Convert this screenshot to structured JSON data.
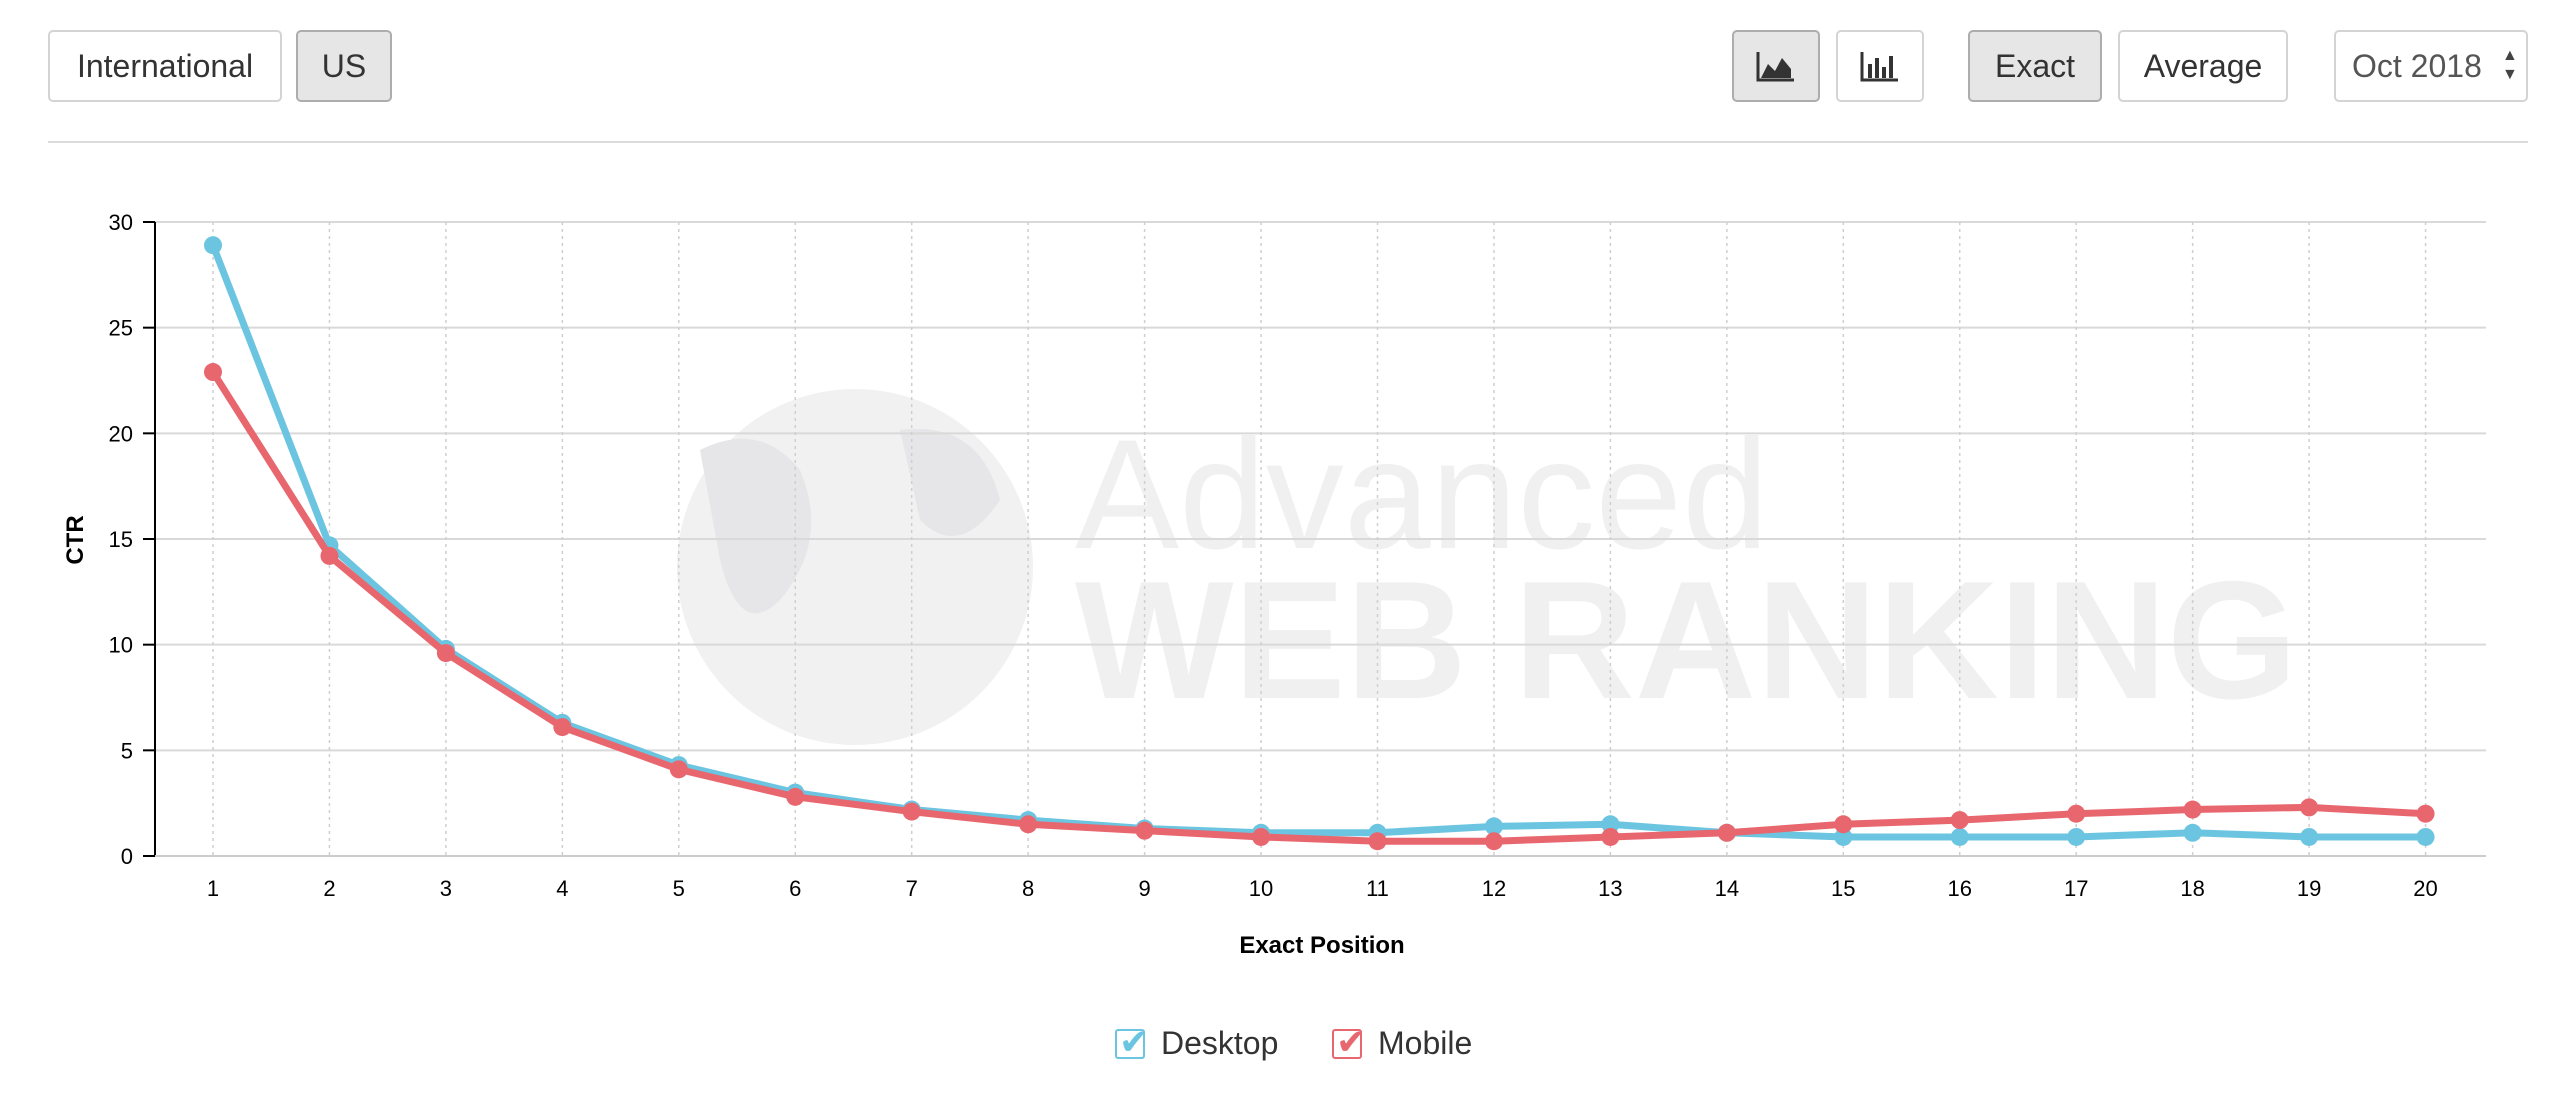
{
  "toolbar": {
    "region_international": "International",
    "region_us": "US",
    "view_area_icon": "area-chart-icon",
    "view_bar_icon": "bar-chart-icon",
    "mode_exact": "Exact",
    "mode_average": "Average",
    "date_value": "Oct 2018",
    "date_arrows": "▲▼"
  },
  "watermark": {
    "line1": "Advanced",
    "line2": "WEB RANKING"
  },
  "colors": {
    "desktop": "#6cc5e0",
    "mobile": "#e8676f",
    "grid": "#d9d9d9",
    "axis": "#000000"
  },
  "chart_data": {
    "type": "line",
    "xlabel": "Exact Position",
    "ylabel": "CTR",
    "x": [
      1,
      2,
      3,
      4,
      5,
      6,
      7,
      8,
      9,
      10,
      11,
      12,
      13,
      14,
      15,
      16,
      17,
      18,
      19,
      20
    ],
    "ylim": [
      0,
      30
    ],
    "yticks": [
      0,
      5,
      10,
      15,
      20,
      25,
      30
    ],
    "grid": true,
    "legend_position": "bottom-center",
    "series": [
      {
        "name": "Desktop",
        "color": "#6cc5e0",
        "values": [
          28.9,
          14.7,
          9.8,
          6.3,
          4.3,
          3.0,
          2.2,
          1.7,
          1.3,
          1.1,
          1.1,
          1.4,
          1.5,
          1.1,
          0.9,
          0.9,
          0.9,
          1.1,
          0.9,
          0.9
        ]
      },
      {
        "name": "Mobile",
        "color": "#e8676f",
        "values": [
          22.9,
          14.2,
          9.6,
          6.1,
          4.1,
          2.8,
          2.1,
          1.5,
          1.2,
          0.9,
          0.7,
          0.7,
          0.9,
          1.1,
          1.5,
          1.7,
          2.0,
          2.2,
          2.3,
          2.0
        ]
      }
    ]
  }
}
